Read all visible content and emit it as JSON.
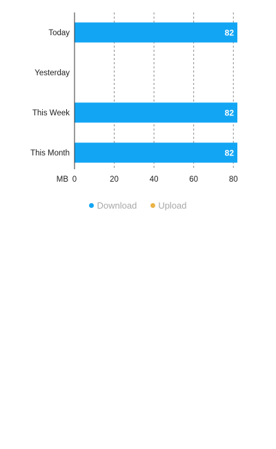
{
  "chart_data": {
    "type": "bar",
    "orientation": "horizontal",
    "categories": [
      "Today",
      "Yesterday",
      "This Week",
      "This Month"
    ],
    "series": [
      {
        "name": "Download",
        "values": [
          82,
          0,
          82,
          82
        ],
        "color": "#12a5f4"
      },
      {
        "name": "Upload",
        "values": [
          0,
          0,
          0,
          0
        ],
        "color": "#e9b347"
      }
    ],
    "data_labels": [
      "82",
      "",
      "82",
      "82"
    ],
    "xlabel": "MB",
    "ylabel": "",
    "xlim": [
      0,
      82
    ],
    "xticks": [
      0,
      20,
      40,
      60,
      80
    ],
    "grid": true,
    "legend_position": "bottom-center"
  }
}
